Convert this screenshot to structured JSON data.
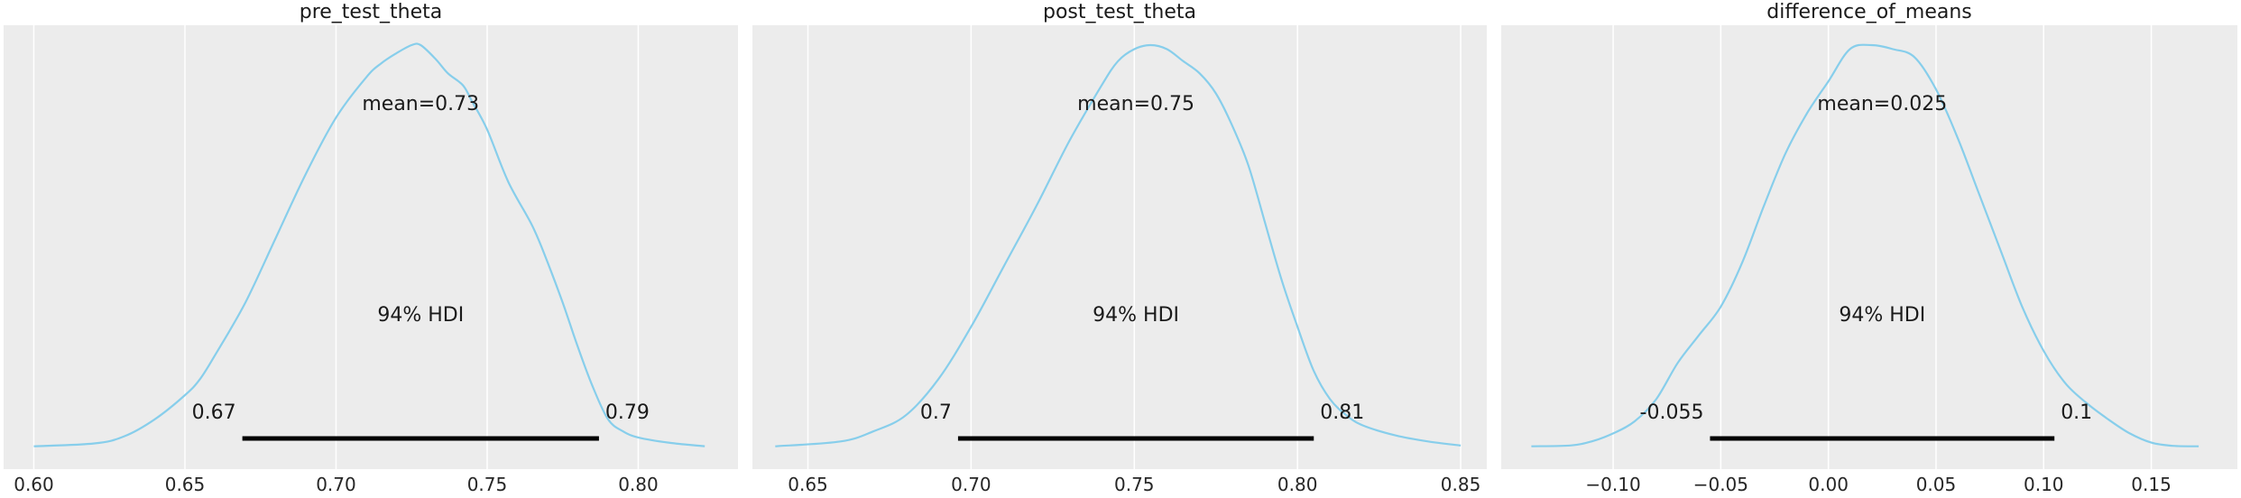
{
  "chart_data": [
    {
      "type": "area",
      "title": "pre_test_theta",
      "xlim": [
        0.59,
        0.833
      ],
      "x_ticks": [
        0.6,
        0.65,
        0.7,
        0.75,
        0.8
      ],
      "x_tick_labels": [
        "0.60",
        "0.65",
        "0.70",
        "0.75",
        "0.80"
      ],
      "x": [
        0.6,
        0.62,
        0.63,
        0.64,
        0.65,
        0.655,
        0.66,
        0.67,
        0.68,
        0.69,
        0.7,
        0.71,
        0.715,
        0.72,
        0.725,
        0.728,
        0.733,
        0.737,
        0.742,
        0.745,
        0.75,
        0.757,
        0.765,
        0.77,
        0.775,
        0.78,
        0.785,
        0.79,
        0.795,
        0.8,
        0.81,
        0.822
      ],
      "density": [
        0.003,
        0.01,
        0.028,
        0.07,
        0.13,
        0.17,
        0.23,
        0.36,
        0.52,
        0.68,
        0.82,
        0.92,
        0.955,
        0.98,
        1.0,
        1.0,
        0.965,
        0.93,
        0.9,
        0.86,
        0.79,
        0.66,
        0.55,
        0.46,
        0.36,
        0.25,
        0.15,
        0.07,
        0.04,
        0.025,
        0.012,
        0.003
      ],
      "mean_label": "mean=0.73",
      "hdi_label": "94% HDI",
      "hdi_low": 0.669,
      "hdi_high": 0.787,
      "hdi_low_label": "0.67",
      "hdi_high_label": "0.79"
    },
    {
      "type": "area",
      "title": "post_test_theta",
      "xlim": [
        0.633,
        0.858
      ],
      "x_ticks": [
        0.65,
        0.7,
        0.75,
        0.8,
        0.85
      ],
      "x_tick_labels": [
        "0.65",
        "0.70",
        "0.75",
        "0.80",
        "0.85"
      ],
      "x": [
        0.64,
        0.66,
        0.67,
        0.68,
        0.69,
        0.7,
        0.71,
        0.72,
        0.73,
        0.74,
        0.745,
        0.75,
        0.755,
        0.76,
        0.765,
        0.77,
        0.775,
        0.78,
        0.785,
        0.79,
        0.795,
        0.8,
        0.805,
        0.81,
        0.815,
        0.82,
        0.83,
        0.84,
        0.85
      ],
      "density": [
        0.003,
        0.015,
        0.04,
        0.08,
        0.17,
        0.3,
        0.45,
        0.6,
        0.76,
        0.9,
        0.96,
        0.99,
        1.0,
        0.99,
        0.96,
        0.93,
        0.88,
        0.8,
        0.7,
        0.56,
        0.42,
        0.3,
        0.19,
        0.12,
        0.08,
        0.055,
        0.03,
        0.015,
        0.005
      ],
      "mean_label": "mean=0.75",
      "hdi_label": "94% HDI",
      "hdi_low": 0.696,
      "hdi_high": 0.805,
      "hdi_low_label": "0.7",
      "hdi_high_label": "0.81"
    },
    {
      "type": "area",
      "title": "difference_of_means",
      "xlim": [
        -0.152,
        0.19
      ],
      "x_ticks": [
        -0.1,
        -0.05,
        0.0,
        0.05,
        0.1,
        0.15
      ],
      "x_tick_labels": [
        "−0.10",
        "−0.05",
        "0.00",
        "0.05",
        "0.10",
        "0.15"
      ],
      "x": [
        -0.138,
        -0.12,
        -0.11,
        -0.1,
        -0.09,
        -0.08,
        -0.07,
        -0.06,
        -0.05,
        -0.04,
        -0.03,
        -0.02,
        -0.01,
        0.0,
        0.01,
        0.02,
        0.03,
        0.04,
        0.05,
        0.06,
        0.07,
        0.08,
        0.09,
        0.1,
        0.11,
        0.12,
        0.13,
        0.14,
        0.15,
        0.16,
        0.172
      ],
      "density": [
        0.003,
        0.005,
        0.015,
        0.035,
        0.065,
        0.12,
        0.21,
        0.28,
        0.35,
        0.46,
        0.6,
        0.73,
        0.83,
        0.91,
        0.99,
        1.0,
        0.99,
        0.97,
        0.89,
        0.77,
        0.63,
        0.49,
        0.35,
        0.24,
        0.16,
        0.11,
        0.07,
        0.035,
        0.012,
        0.004,
        0.003
      ],
      "mean_label": "mean=0.025",
      "hdi_label": "94% HDI",
      "hdi_low": -0.055,
      "hdi_high": 0.105,
      "hdi_low_label": "-0.055",
      "hdi_high_label": "0.1"
    }
  ]
}
